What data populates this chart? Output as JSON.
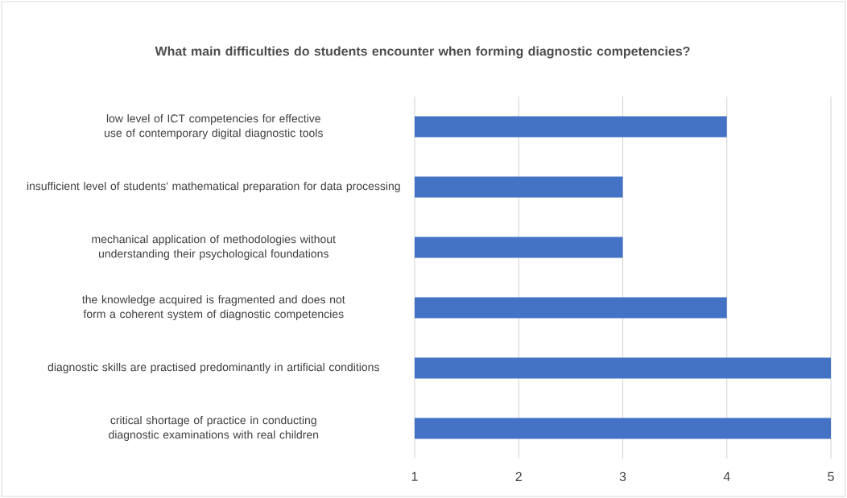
{
  "chart_data": {
    "type": "bar",
    "orientation": "horizontal",
    "title": "What main difficulties do students encounter when forming diagnostic competencies?",
    "categories": [
      "low level of ICT competencies for effective use of contemporary digital diagnostic tools",
      "insufficient level of students' mathematical preparation for data processing",
      "mechanical application of methodologies without understanding their psychological foundations",
      "the knowledge acquired is fragmented and does not form a coherent system of diagnostic competencies",
      "diagnostic skills are practised predominantly in artificial conditions",
      "critical shortage of practice in conducting diagnostic examinations with real children"
    ],
    "values": [
      4,
      3,
      3,
      4,
      5,
      5
    ],
    "color": "#4472c4",
    "xlim": [
      1,
      5
    ],
    "xticks": [
      1,
      2,
      3,
      4,
      5
    ],
    "grid": "x"
  }
}
